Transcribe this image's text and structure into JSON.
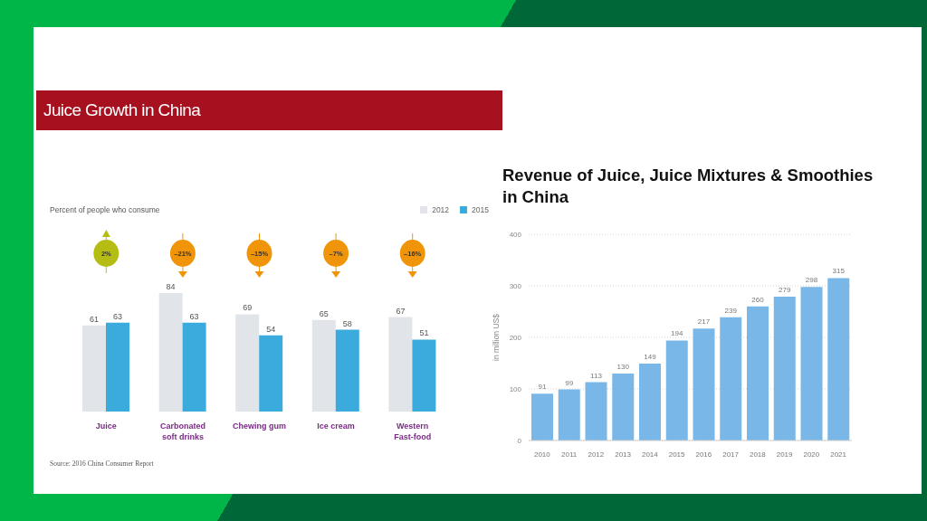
{
  "chart_data": [
    {
      "type": "bar",
      "title": "Juice Growth in China",
      "subtitle": "Percent of people who consume",
      "categories": [
        "Juice",
        "Carbonated soft drinks",
        "Chewing gum",
        "Ice cream",
        "Western Fast-food"
      ],
      "series": [
        {
          "name": "2012",
          "color": "#e1e5e9",
          "values": [
            61,
            84,
            69,
            65,
            67
          ]
        },
        {
          "name": "2015",
          "color": "#3aabdc",
          "values": [
            63,
            63,
            54,
            58,
            51
          ]
        }
      ],
      "data_labels": true,
      "legend": "top right",
      "tick_labels": "x",
      "annotations": [
        "2%",
        "–21%",
        "–15%",
        "–7%",
        "–16%",
        "Source: 2016 China Consumer Report"
      ]
    },
    {
      "type": "bar",
      "title": "Revenue of Juice, Juice Mixtures & Smoothies in China",
      "ylabel": "in million US$",
      "categories": [
        "2010",
        "2011",
        "2012",
        "2013",
        "2014",
        "2015",
        "2016",
        "2017",
        "2018",
        "2019",
        "2020",
        "2021"
      ],
      "values": [
        91,
        99,
        113,
        130,
        149,
        194,
        217,
        239,
        260,
        279,
        298,
        315
      ],
      "color": "#78b7e7",
      "ylim": [
        0,
        400
      ],
      "yticks": [
        0,
        100,
        200,
        300,
        400
      ],
      "grid": "y",
      "data_labels": true
    }
  ]
}
